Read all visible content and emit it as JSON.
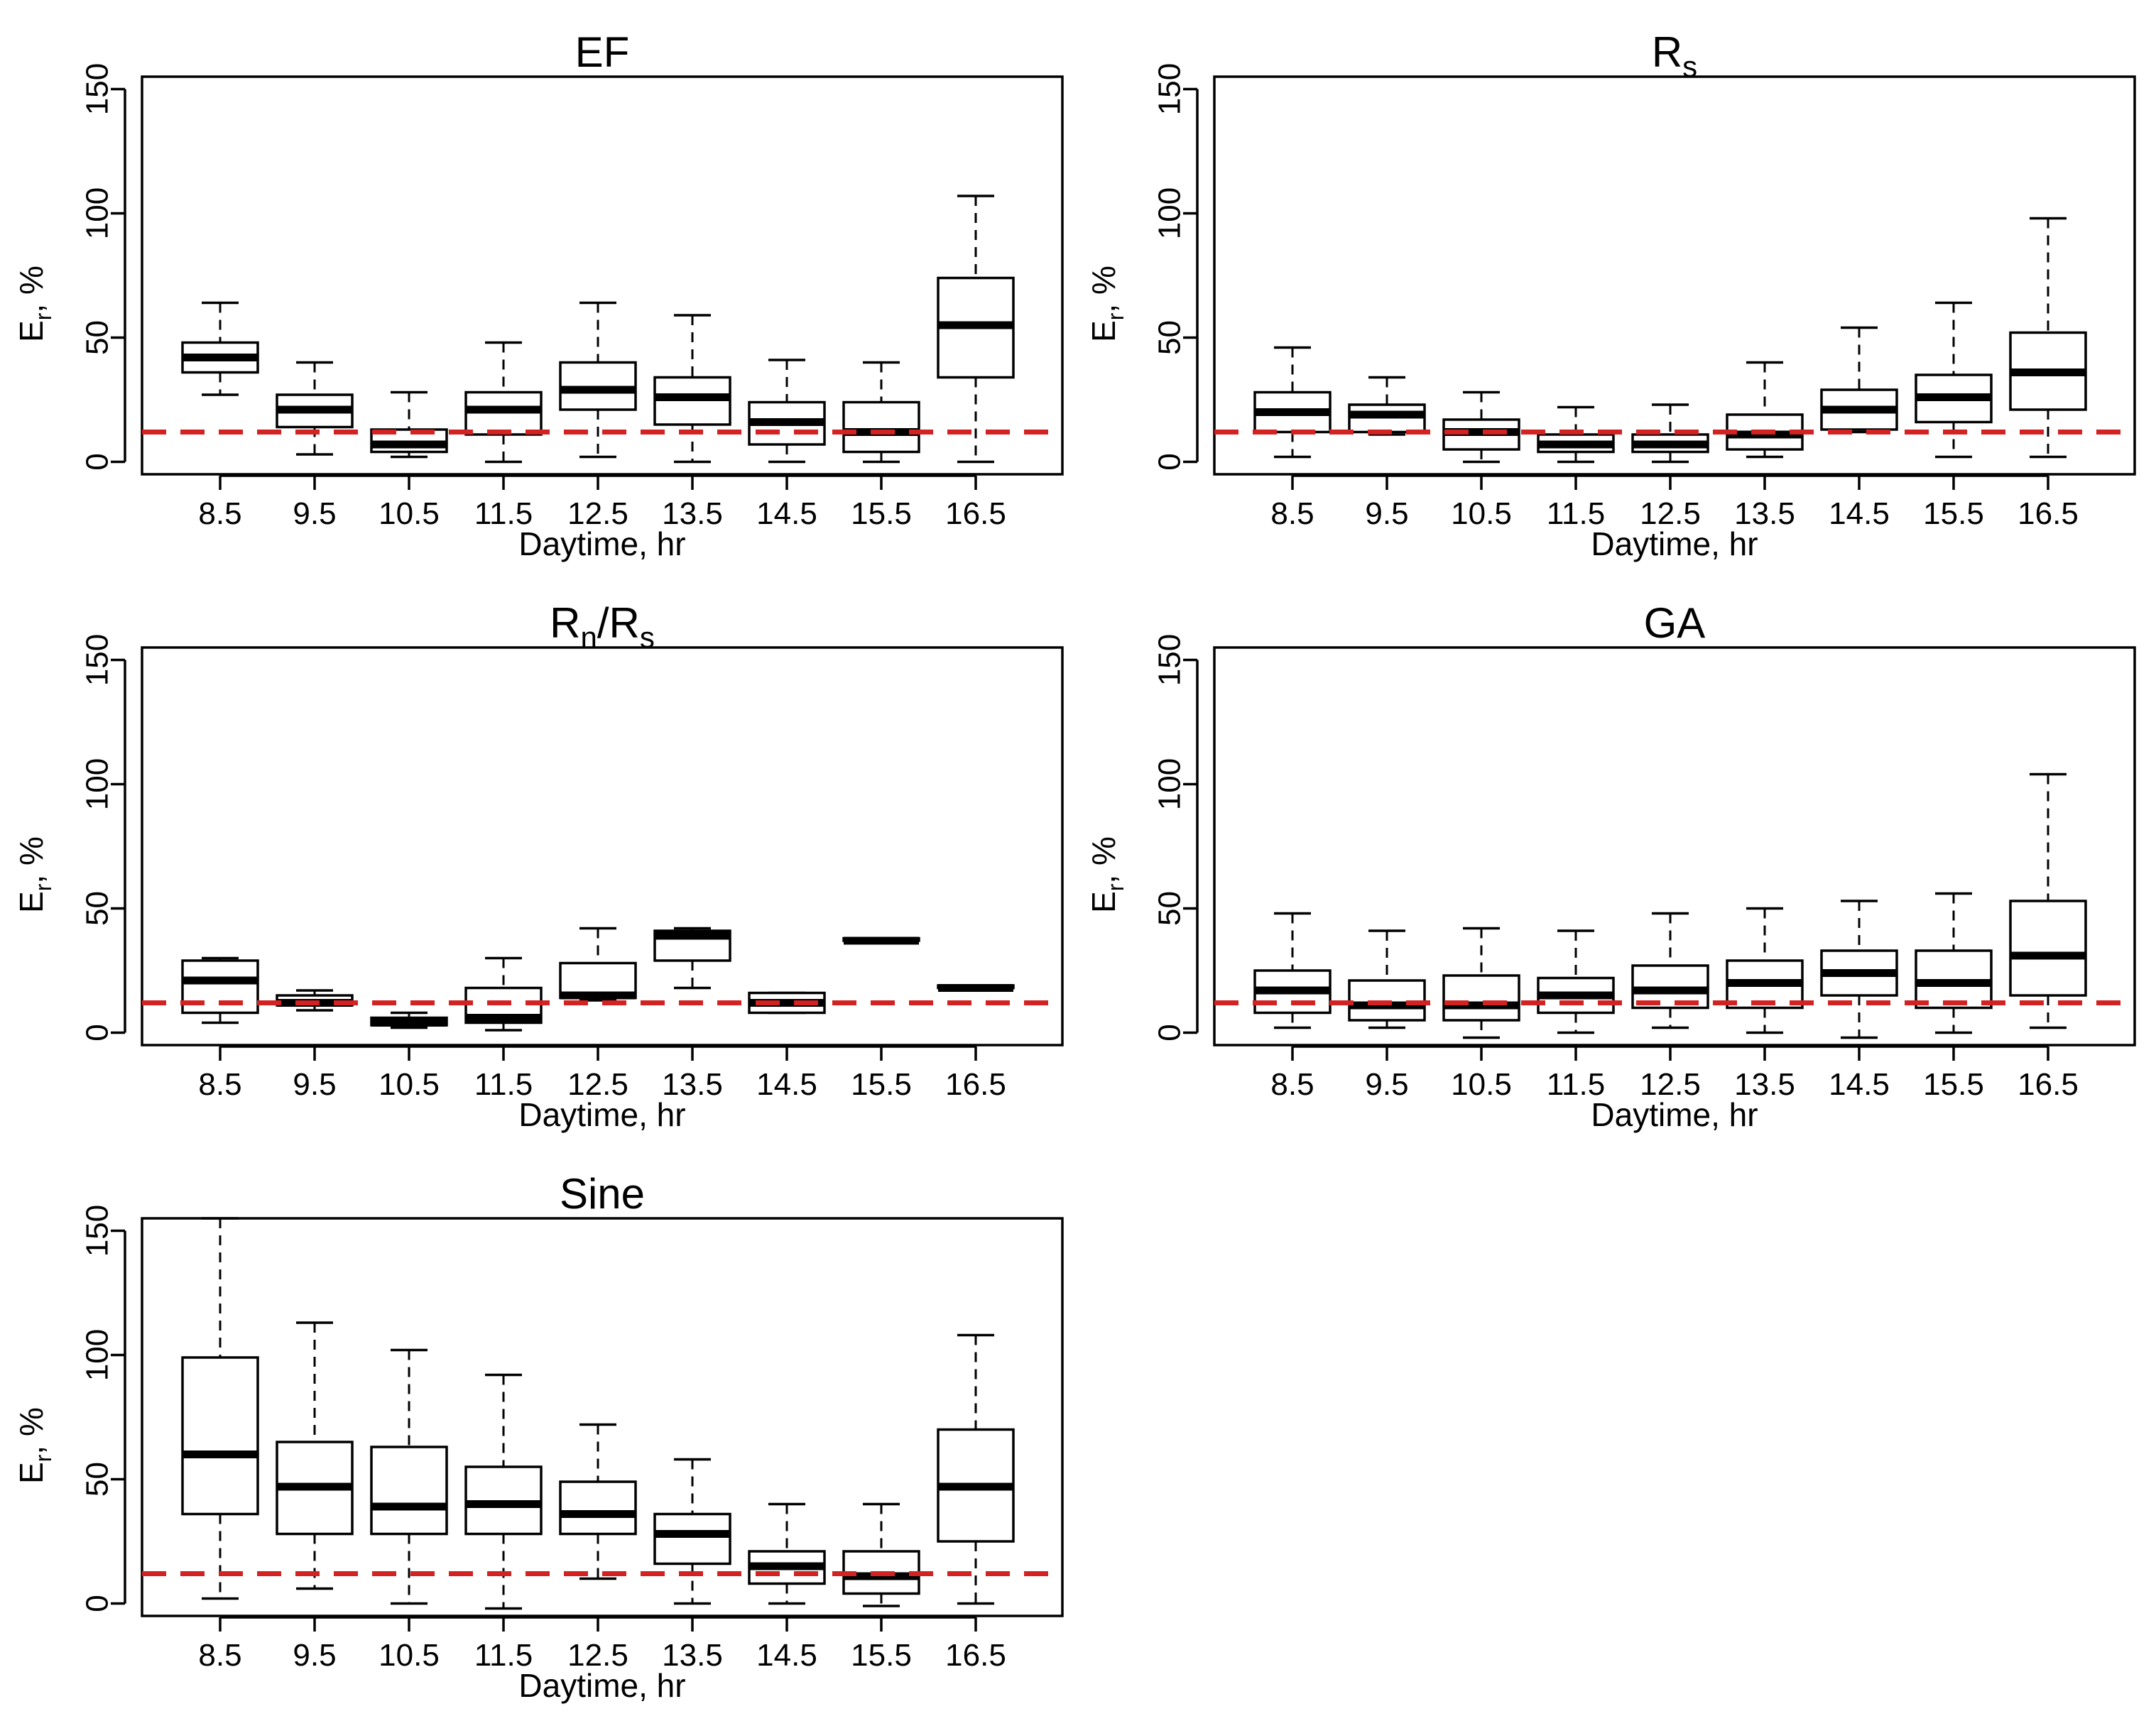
{
  "chart_data": [
    {
      "type": "box",
      "title": "EF",
      "title_sub": "",
      "title_tail": "",
      "xlabel": "Daytime, hr",
      "ylabel_main": "E",
      "ylabel_sub": "r",
      "ylabel_tail": ", %",
      "ylim": [
        -5,
        155
      ],
      "yticks": [
        0,
        50,
        100,
        150
      ],
      "categories": [
        "8.5",
        "9.5",
        "10.5",
        "11.5",
        "12.5",
        "13.5",
        "14.5",
        "15.5",
        "16.5"
      ],
      "reference_line": 12,
      "boxes": [
        {
          "lower_whisker": 27,
          "q1": 36,
          "median": 42,
          "q3": 48,
          "upper_whisker": 64
        },
        {
          "lower_whisker": 3,
          "q1": 14,
          "median": 21,
          "q3": 27,
          "upper_whisker": 40
        },
        {
          "lower_whisker": 2,
          "q1": 4,
          "median": 7,
          "q3": 13,
          "upper_whisker": 28
        },
        {
          "lower_whisker": 0,
          "q1": 11,
          "median": 21,
          "q3": 28,
          "upper_whisker": 48
        },
        {
          "lower_whisker": 2,
          "q1": 21,
          "median": 29,
          "q3": 40,
          "upper_whisker": 64
        },
        {
          "lower_whisker": 0,
          "q1": 15,
          "median": 26,
          "q3": 34,
          "upper_whisker": 59
        },
        {
          "lower_whisker": 0,
          "q1": 7,
          "median": 16,
          "q3": 24,
          "upper_whisker": 41
        },
        {
          "lower_whisker": 0,
          "q1": 4,
          "median": 12,
          "q3": 24,
          "upper_whisker": 40
        },
        {
          "lower_whisker": 0,
          "q1": 34,
          "median": 55,
          "q3": 74,
          "upper_whisker": 107
        }
      ]
    },
    {
      "type": "box",
      "title": "R",
      "title_sub": "s",
      "title_tail": "",
      "xlabel": "Daytime, hr",
      "ylabel_main": "E",
      "ylabel_sub": "r",
      "ylabel_tail": ", %",
      "ylim": [
        -5,
        155
      ],
      "yticks": [
        0,
        50,
        100,
        150
      ],
      "categories": [
        "8.5",
        "9.5",
        "10.5",
        "11.5",
        "12.5",
        "13.5",
        "14.5",
        "15.5",
        "16.5"
      ],
      "reference_line": 12,
      "boxes": [
        {
          "lower_whisker": 2,
          "q1": 12,
          "median": 20,
          "q3": 28,
          "upper_whisker": 46
        },
        {
          "lower_whisker": 11,
          "q1": 12,
          "median": 19,
          "q3": 23,
          "upper_whisker": 34
        },
        {
          "lower_whisker": 0,
          "q1": 5,
          "median": 12,
          "q3": 17,
          "upper_whisker": 28
        },
        {
          "lower_whisker": 0,
          "q1": 4,
          "median": 7,
          "q3": 11,
          "upper_whisker": 22
        },
        {
          "lower_whisker": 0,
          "q1": 4,
          "median": 7,
          "q3": 11,
          "upper_whisker": 23
        },
        {
          "lower_whisker": 2,
          "q1": 5,
          "median": 11,
          "q3": 19,
          "upper_whisker": 40
        },
        {
          "lower_whisker": 12,
          "q1": 13,
          "median": 21,
          "q3": 29,
          "upper_whisker": 54
        },
        {
          "lower_whisker": 2,
          "q1": 16,
          "median": 26,
          "q3": 35,
          "upper_whisker": 64
        },
        {
          "lower_whisker": 2,
          "q1": 21,
          "median": 36,
          "q3": 52,
          "upper_whisker": 98
        }
      ]
    },
    {
      "type": "box",
      "title": "R",
      "title_sub": "n",
      "title_tail": "/R",
      "title_sub2": "s",
      "xlabel": "Daytime, hr",
      "ylabel_main": "E",
      "ylabel_sub": "r",
      "ylabel_tail": ", %",
      "ylim": [
        -5,
        155
      ],
      "yticks": [
        0,
        50,
        100,
        150
      ],
      "categories": [
        "8.5",
        "9.5",
        "10.5",
        "11.5",
        "12.5",
        "13.5",
        "14.5",
        "15.5",
        "16.5"
      ],
      "reference_line": 12,
      "boxes": [
        {
          "lower_whisker": 4,
          "q1": 8,
          "median": 21,
          "q3": 29,
          "upper_whisker": 30
        },
        {
          "lower_whisker": 9,
          "q1": 11,
          "median": 12,
          "q3": 15,
          "upper_whisker": 17
        },
        {
          "lower_whisker": 2,
          "q1": 3,
          "median": 4,
          "q3": 6,
          "upper_whisker": 8
        },
        {
          "lower_whisker": 1,
          "q1": 4,
          "median": 6,
          "q3": 18,
          "upper_whisker": 30
        },
        {
          "lower_whisker": 13,
          "q1": 14,
          "median": 15,
          "q3": 28,
          "upper_whisker": 42
        },
        {
          "lower_whisker": 18,
          "q1": 29,
          "median": 39,
          "q3": 41,
          "upper_whisker": 42
        },
        {
          "lower_whisker": 8,
          "q1": 8,
          "median": 12,
          "q3": 16,
          "upper_whisker": 16
        },
        {
          "lower_whisker": 37,
          "q1": 37,
          "median": 37,
          "q3": 38,
          "upper_whisker": 38
        },
        {
          "lower_whisker": 18,
          "q1": 18,
          "median": 18,
          "q3": 19,
          "upper_whisker": 19
        }
      ]
    },
    {
      "type": "box",
      "title": "GA",
      "title_sub": "",
      "title_tail": "",
      "xlabel": "Daytime, hr",
      "ylabel_main": "E",
      "ylabel_sub": "r",
      "ylabel_tail": ", %",
      "ylim": [
        -5,
        155
      ],
      "yticks": [
        0,
        50,
        100,
        150
      ],
      "categories": [
        "8.5",
        "9.5",
        "10.5",
        "11.5",
        "12.5",
        "13.5",
        "14.5",
        "15.5",
        "16.5"
      ],
      "reference_line": 12,
      "boxes": [
        {
          "lower_whisker": 2,
          "q1": 8,
          "median": 17,
          "q3": 25,
          "upper_whisker": 48
        },
        {
          "lower_whisker": 2,
          "q1": 5,
          "median": 11,
          "q3": 21,
          "upper_whisker": 41
        },
        {
          "lower_whisker": -2,
          "q1": 5,
          "median": 11,
          "q3": 23,
          "upper_whisker": 42
        },
        {
          "lower_whisker": 0,
          "q1": 8,
          "median": 15,
          "q3": 22,
          "upper_whisker": 41
        },
        {
          "lower_whisker": 2,
          "q1": 10,
          "median": 17,
          "q3": 27,
          "upper_whisker": 48
        },
        {
          "lower_whisker": 0,
          "q1": 10,
          "median": 20,
          "q3": 29,
          "upper_whisker": 50
        },
        {
          "lower_whisker": -2,
          "q1": 15,
          "median": 24,
          "q3": 33,
          "upper_whisker": 53
        },
        {
          "lower_whisker": 0,
          "q1": 10,
          "median": 20,
          "q3": 33,
          "upper_whisker": 56
        },
        {
          "lower_whisker": 2,
          "q1": 15,
          "median": 31,
          "q3": 53,
          "upper_whisker": 104
        }
      ]
    },
    {
      "type": "box",
      "title": "Sine",
      "title_sub": "",
      "title_tail": "",
      "xlabel": "Daytime, hr",
      "ylabel_main": "E",
      "ylabel_sub": "r",
      "ylabel_tail": ", %",
      "ylim": [
        -5,
        155
      ],
      "yticks": [
        0,
        50,
        100,
        150
      ],
      "categories": [
        "8.5",
        "9.5",
        "10.5",
        "11.5",
        "12.5",
        "13.5",
        "14.5",
        "15.5",
        "16.5"
      ],
      "reference_line": 12,
      "boxes": [
        {
          "lower_whisker": 2,
          "q1": 36,
          "median": 60,
          "q3": 99,
          "upper_whisker": 155
        },
        {
          "lower_whisker": 6,
          "q1": 28,
          "median": 47,
          "q3": 65,
          "upper_whisker": 113
        },
        {
          "lower_whisker": 0,
          "q1": 28,
          "median": 39,
          "q3": 63,
          "upper_whisker": 102
        },
        {
          "lower_whisker": -2,
          "q1": 28,
          "median": 40,
          "q3": 55,
          "upper_whisker": 92
        },
        {
          "lower_whisker": 10,
          "q1": 28,
          "median": 36,
          "q3": 49,
          "upper_whisker": 72
        },
        {
          "lower_whisker": 0,
          "q1": 16,
          "median": 28,
          "q3": 36,
          "upper_whisker": 58
        },
        {
          "lower_whisker": 0,
          "q1": 8,
          "median": 15,
          "q3": 21,
          "upper_whisker": 40
        },
        {
          "lower_whisker": -1,
          "q1": 4,
          "median": 11,
          "q3": 21,
          "upper_whisker": 40
        },
        {
          "lower_whisker": 0,
          "q1": 25,
          "median": 47,
          "q3": 70,
          "upper_whisker": 108
        }
      ]
    }
  ]
}
